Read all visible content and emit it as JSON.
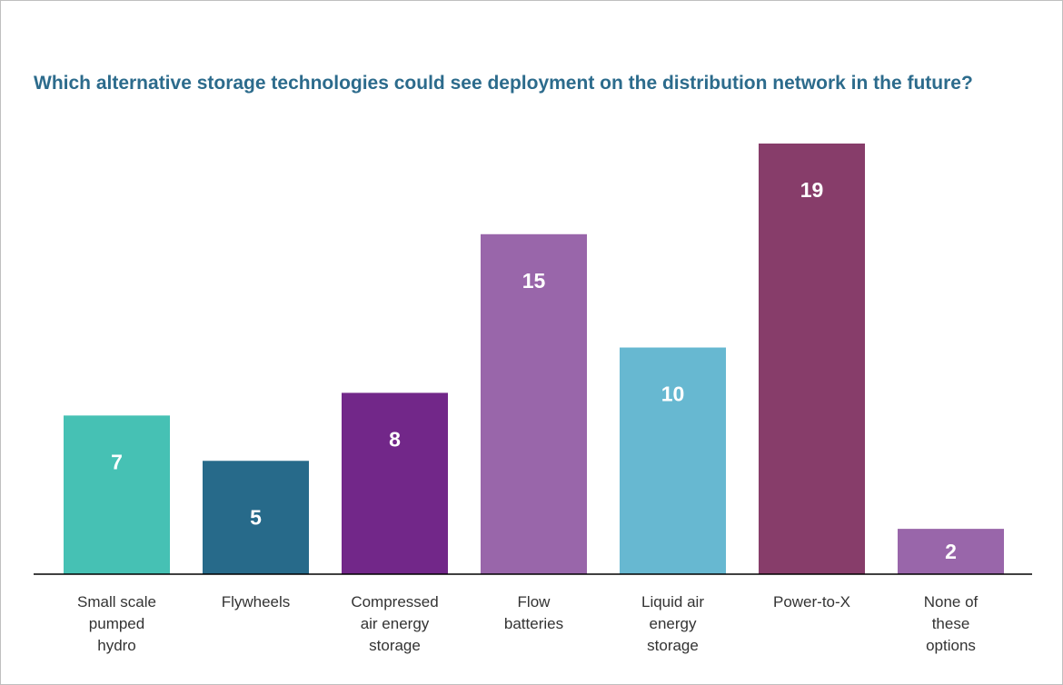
{
  "chart_data": {
    "type": "bar",
    "title": "Which alternative storage technologies could see deployment on the distribution network in the future?",
    "categories": [
      "Small scale pumped hydro",
      "Flywheels",
      "Compressed air energy storage",
      "Flow batteries",
      "Liquid air energy storage",
      "Power-to-X",
      "None of these options"
    ],
    "category_lines": [
      [
        "Small scale",
        "pumped",
        "hydro"
      ],
      [
        "Flywheels"
      ],
      [
        "Compressed",
        "air energy",
        "storage"
      ],
      [
        "Flow",
        "batteries"
      ],
      [
        "Liquid air",
        "energy",
        "storage"
      ],
      [
        "Power-to-X"
      ],
      [
        "None of",
        "these",
        "options"
      ]
    ],
    "values": [
      7,
      5,
      8,
      15,
      10,
      19,
      2
    ],
    "data_labels": [
      "7",
      "5",
      "8",
      "15",
      "10",
      "19",
      "2"
    ],
    "colors": [
      "#46c1b4",
      "#276a8a",
      "#722789",
      "#9966aa",
      "#67b8d1",
      "#873d6a",
      "#9966aa"
    ],
    "ylim": [
      0,
      21
    ],
    "grid": false,
    "axis_visible": false,
    "legend": "none"
  }
}
